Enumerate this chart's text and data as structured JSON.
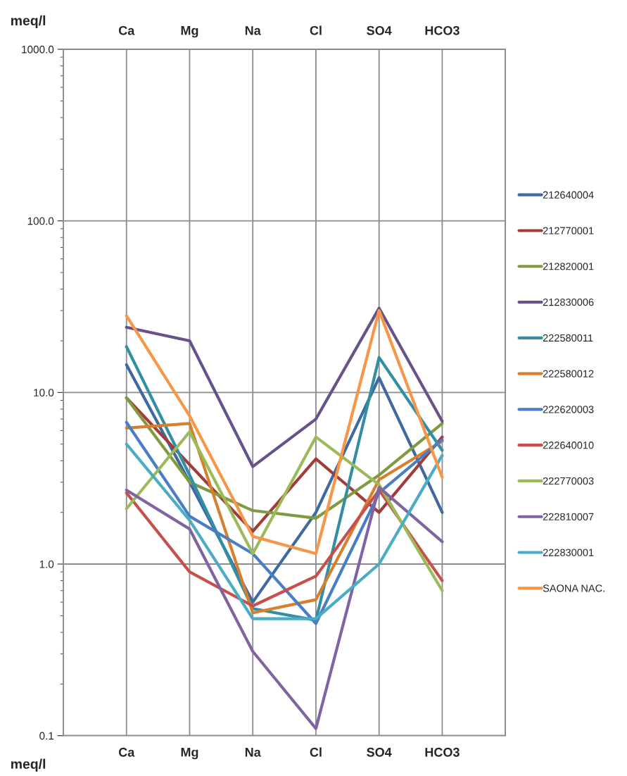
{
  "chart_data": {
    "type": "line",
    "ylabel": "meq/l",
    "categories": [
      null,
      "Ca",
      "Mg",
      "Na",
      "Cl",
      "SO4",
      "HCO3",
      null
    ],
    "log": true,
    "ylim": [
      0.1,
      1000
    ],
    "yticks": [
      {
        "value": 0.1,
        "label": "0.1"
      },
      {
        "value": 1,
        "label": "1.0"
      },
      {
        "value": 10,
        "label": "10.0"
      },
      {
        "value": 100,
        "label": "100.0"
      },
      {
        "value": 1000,
        "label": "1000.0"
      }
    ],
    "grid": true,
    "legend": "right",
    "marker": "none",
    "line_style": "solid",
    "series": [
      {
        "name": "212640004",
        "color": "#3f6aa1",
        "values": [
          null,
          14.5,
          3.0,
          0.6,
          2.0,
          12.2,
          2.0,
          null
        ]
      },
      {
        "name": "212770001",
        "color": "#a13c39",
        "values": [
          null,
          9.3,
          3.8,
          1.55,
          4.1,
          2.0,
          5.5,
          null
        ]
      },
      {
        "name": "212820001",
        "color": "#7f9a3f",
        "values": [
          null,
          9.3,
          3.0,
          2.05,
          1.85,
          3.3,
          6.6,
          null
        ]
      },
      {
        "name": "212830006",
        "color": "#68528a",
        "values": [
          null,
          24,
          20,
          3.7,
          7.0,
          31,
          6.8,
          null
        ]
      },
      {
        "name": "222580011",
        "color": "#328ea3",
        "values": [
          null,
          18.5,
          3.3,
          0.55,
          0.47,
          16,
          4.6,
          null
        ]
      },
      {
        "name": "222580012",
        "color": "#d6802f",
        "values": [
          null,
          6.2,
          6.6,
          0.52,
          0.62,
          3.1,
          5.2,
          null
        ]
      },
      {
        "name": "222620003",
        "color": "#4a7ec4",
        "values": [
          null,
          6.7,
          1.9,
          1.15,
          0.45,
          2.6,
          5.3,
          null
        ]
      },
      {
        "name": "222640010",
        "color": "#c7504d",
        "values": [
          null,
          2.6,
          0.9,
          0.57,
          0.85,
          2.7,
          0.8,
          null
        ]
      },
      {
        "name": "222770003",
        "color": "#9bbb59",
        "values": [
          null,
          2.1,
          5.9,
          1.15,
          5.5,
          2.9,
          0.7,
          null
        ]
      },
      {
        "name": "222810007",
        "color": "#8064a2",
        "values": [
          null,
          2.7,
          1.6,
          0.31,
          0.11,
          2.8,
          1.35,
          null
        ]
      },
      {
        "name": "222830001",
        "color": "#4bacc6",
        "values": [
          null,
          5.0,
          1.8,
          0.48,
          0.48,
          1.0,
          4.3,
          null
        ]
      },
      {
        "name": "SAONA NAC.",
        "color": "#f79646",
        "values": [
          null,
          28,
          7.3,
          1.45,
          1.15,
          30,
          3.2,
          null
        ]
      }
    ]
  }
}
